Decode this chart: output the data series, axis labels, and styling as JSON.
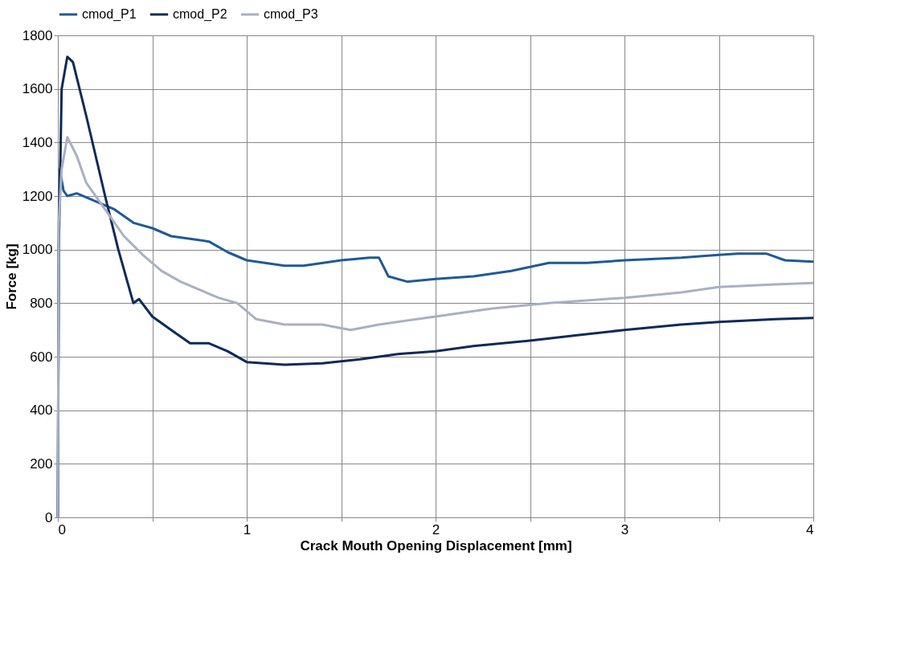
{
  "chart_data": {
    "type": "line",
    "xlabel": "Crack Mouth  Opening Displacement [mm]",
    "ylabel": "Force [kg]",
    "xlim": [
      0,
      4
    ],
    "xticks": [
      0,
      {
        "value": 0.5,
        "label": null
      },
      1,
      {
        "value": 1.5,
        "label": null
      },
      2,
      {
        "value": 2.5,
        "label": null
      },
      3,
      {
        "value": 3.5,
        "label": null
      },
      4
    ],
    "ylim": [
      0,
      1800
    ],
    "yticks": [
      0,
      200,
      400,
      600,
      800,
      1000,
      1200,
      1400,
      1600,
      1800
    ],
    "grid": true,
    "legend": "top",
    "marker": "none",
    "line_style": "solid",
    "series": [
      {
        "name": "cmod_P1",
        "color": "#1f5a96",
        "x": [
          0,
          0.005,
          0.01,
          0.03,
          0.05,
          0.1,
          0.2,
          0.3,
          0.4,
          0.5,
          0.6,
          0.7,
          0.8,
          0.9,
          1.0,
          1.2,
          1.3,
          1.5,
          1.65,
          1.7,
          1.75,
          1.85,
          2.0,
          2.2,
          2.4,
          2.6,
          2.8,
          3.0,
          3.3,
          3.5,
          3.6,
          3.75,
          3.85,
          4.0
        ],
        "values": [
          0,
          1100,
          1300,
          1220,
          1200,
          1210,
          1180,
          1150,
          1100,
          1080,
          1050,
          1040,
          1030,
          990,
          960,
          940,
          940,
          960,
          970,
          970,
          900,
          880,
          890,
          900,
          920,
          950,
          950,
          960,
          970,
          980,
          985,
          985,
          960,
          955
        ]
      },
      {
        "name": "cmod_P2",
        "color": "#0d2a5a",
        "x": [
          0,
          0.005,
          0.02,
          0.05,
          0.08,
          0.15,
          0.25,
          0.32,
          0.4,
          0.43,
          0.5,
          0.6,
          0.7,
          0.8,
          0.9,
          1.0,
          1.2,
          1.4,
          1.6,
          1.8,
          2.0,
          2.2,
          2.5,
          2.75,
          3.0,
          3.3,
          3.5,
          3.8,
          4.0
        ],
        "values": [
          0,
          1000,
          1600,
          1720,
          1700,
          1500,
          1200,
          1000,
          800,
          815,
          750,
          700,
          650,
          650,
          620,
          580,
          570,
          575,
          590,
          610,
          620,
          640,
          660,
          680,
          700,
          720,
          730,
          740,
          745
        ]
      },
      {
        "name": "cmod_P3",
        "color": "#a8b0c4",
        "x": [
          0,
          0.005,
          0.02,
          0.05,
          0.1,
          0.15,
          0.25,
          0.35,
          0.45,
          0.55,
          0.65,
          0.75,
          0.85,
          0.95,
          1.05,
          1.2,
          1.4,
          1.55,
          1.7,
          2.0,
          2.3,
          2.6,
          2.8,
          3.0,
          3.3,
          3.5,
          3.8,
          4.0
        ],
        "values": [
          0,
          1100,
          1300,
          1420,
          1350,
          1250,
          1150,
          1050,
          980,
          920,
          880,
          850,
          820,
          800,
          740,
          720,
          720,
          700,
          720,
          750,
          780,
          800,
          810,
          820,
          840,
          860,
          870,
          875
        ]
      }
    ]
  }
}
